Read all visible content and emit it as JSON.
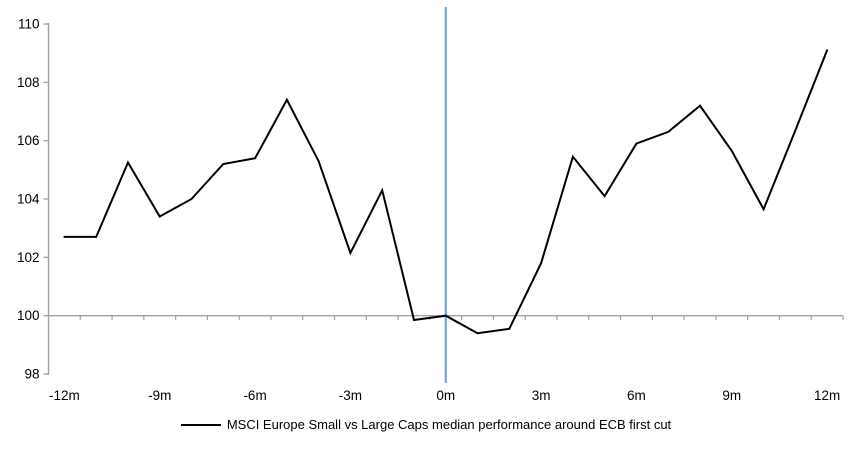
{
  "chart_data": {
    "type": "line",
    "title": "",
    "legend_position": "bottom",
    "grid": false,
    "x_axis": {
      "tick_values": [
        -12,
        -9,
        -6,
        -3,
        0,
        3,
        6,
        9,
        12
      ],
      "tick_labels": [
        "-12m",
        "-9m",
        "-6m",
        "-3m",
        "0m",
        "3m",
        "6m",
        "9m",
        "12m"
      ],
      "xlim": [
        -12.5,
        12.5
      ],
      "baseline_value": 100
    },
    "y_axis": {
      "tick_values": [
        98,
        100,
        102,
        104,
        106,
        108,
        110
      ],
      "tick_labels": [
        "98",
        "100",
        "102",
        "104",
        "106",
        "108",
        "110"
      ],
      "ylim": [
        98,
        110
      ]
    },
    "event_line": {
      "x": 0,
      "color": "#7aa4d4"
    },
    "colors": {
      "series": "#000000",
      "axis": "#a3a3a3",
      "text": "#000000"
    },
    "series": [
      {
        "name": "MSCI Europe Small vs Large Caps median performance around ECB first cut",
        "x": [
          -12,
          -11,
          -10,
          -9,
          -8,
          -7,
          -6,
          -5,
          -4,
          -3,
          -2,
          -1,
          0,
          1,
          2,
          3,
          4,
          5,
          6,
          7,
          8,
          9,
          10,
          11,
          12
        ],
        "values": [
          102.7,
          102.7,
          105.25,
          103.4,
          104.0,
          105.2,
          105.4,
          107.4,
          105.3,
          102.15,
          104.3,
          99.85,
          100.0,
          99.4,
          99.55,
          101.8,
          105.45,
          104.1,
          105.9,
          106.3,
          107.2,
          105.65,
          103.65,
          106.35,
          109.1
        ]
      }
    ]
  }
}
